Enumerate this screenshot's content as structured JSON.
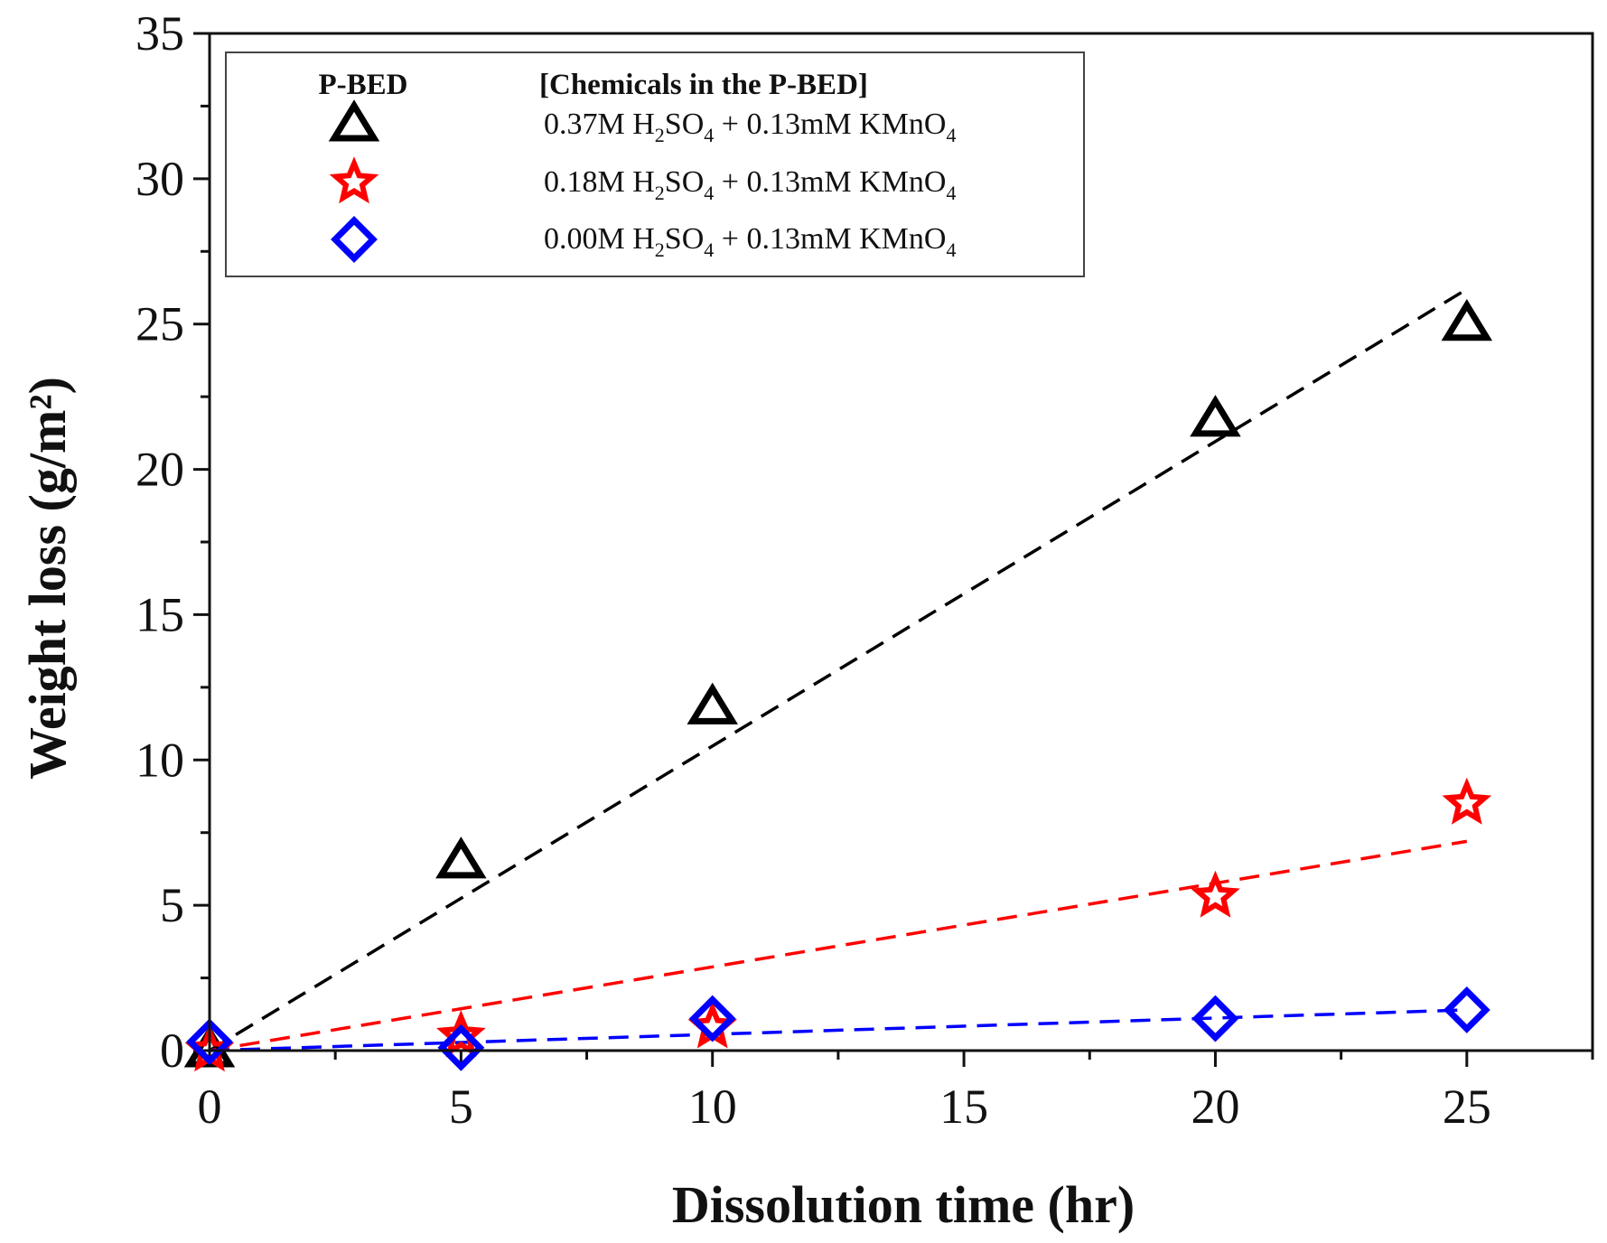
{
  "chart_data": {
    "type": "scatter",
    "xlabel": "Dissolution time (hr)",
    "ylabel": "Weight loss (g/m²)",
    "xlim": [
      0,
      27.5
    ],
    "ylim": [
      0,
      35
    ],
    "x_ticks": [
      0,
      5,
      10,
      15,
      20,
      25
    ],
    "y_ticks": [
      0,
      5,
      10,
      15,
      20,
      25,
      30,
      35
    ],
    "grid": false,
    "legend": {
      "position": "top-left",
      "header_symbol": "P-BED",
      "header_text": "[Chemicals in the P-BED]"
    },
    "series": [
      {
        "name": "0.37M H2SO4 + 0.13mM KMnO4",
        "label_parts": [
          "0.37M H",
          "2",
          "SO",
          "4",
          " + 0.13mM KMnO",
          "4"
        ],
        "marker": "triangle",
        "color": "#000000",
        "x": [
          0,
          5,
          10,
          20,
          25
        ],
        "y": [
          0,
          6.5,
          11.8,
          21.7,
          25.0
        ],
        "fit": {
          "x": [
            0,
            25
          ],
          "y": [
            0,
            26.2
          ]
        }
      },
      {
        "name": "0.18M H2SO4 + 0.13mM KMnO4",
        "label_parts": [
          "0.18M H",
          "2",
          "SO",
          "4",
          " + 0.13mM KMnO",
          "4"
        ],
        "marker": "star",
        "color": "#ff0000",
        "x": [
          0,
          5,
          10,
          20,
          25
        ],
        "y": [
          0,
          0.5,
          0.8,
          5.3,
          8.5
        ],
        "fit": {
          "x": [
            0,
            25
          ],
          "y": [
            0,
            7.2
          ]
        }
      },
      {
        "name": "0.00M H2SO4 + 0.13mM KMnO4",
        "label_parts": [
          "0.00M H",
          "2",
          "SO",
          "4",
          " + 0.13mM KMnO",
          "4"
        ],
        "marker": "diamond",
        "color": "#0000ff",
        "x": [
          0,
          5,
          10,
          20,
          25
        ],
        "y": [
          0.3,
          0.1,
          1.1,
          1.1,
          1.4
        ],
        "fit": {
          "x": [
            0,
            25
          ],
          "y": [
            0,
            1.4
          ]
        }
      }
    ]
  }
}
